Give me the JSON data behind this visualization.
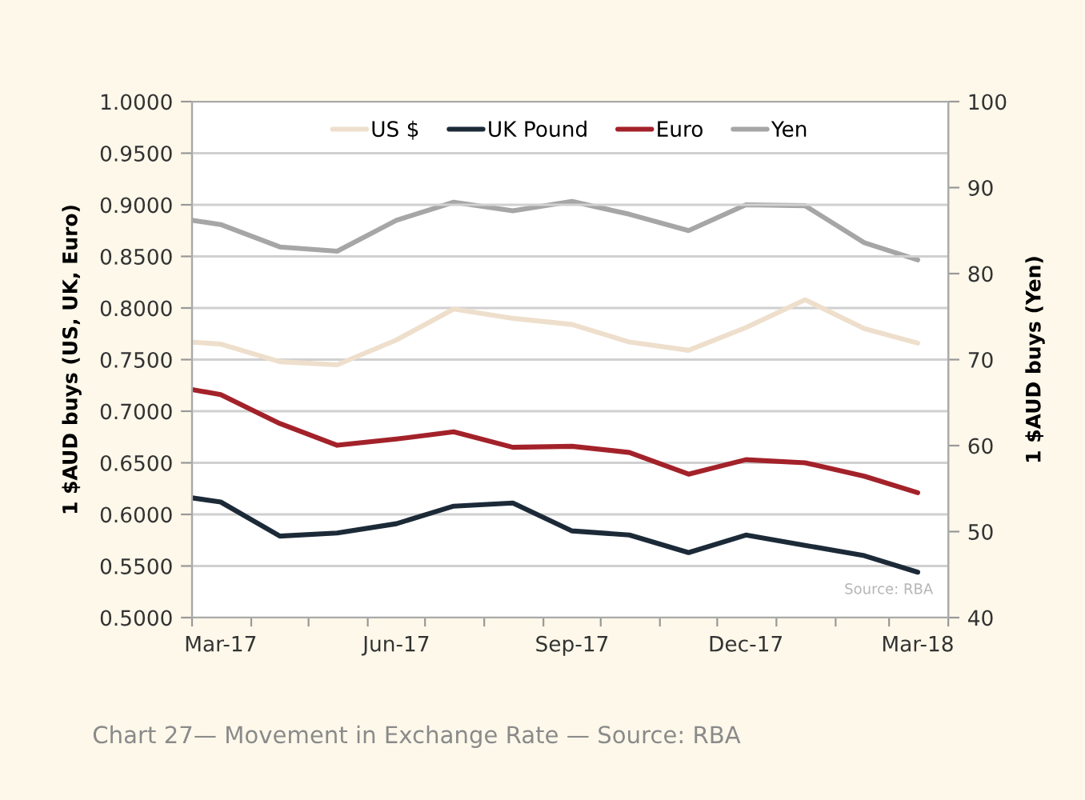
{
  "chart_data": {
    "type": "line",
    "xlabel": null,
    "ylabel": "1 $AUD buys (US, UK, Euro)",
    "y2label": "1 $AUD buys (Yen)",
    "x": [
      "2017-03-01",
      "2017-03-16",
      "2017-04-16",
      "2017-05-16",
      "2017-06-16",
      "2017-07-16",
      "2017-08-16",
      "2017-09-16",
      "2017-10-16",
      "2017-11-16",
      "2017-12-16",
      "2018-01-16",
      "2018-02-16",
      "2018-03-16"
    ],
    "series": [
      {
        "name": "US $",
        "color": "#eedfcc",
        "values": [
          0.767,
          0.765,
          0.748,
          0.745,
          0.769,
          0.799,
          0.79,
          0.784,
          0.767,
          0.759,
          0.781,
          0.808,
          0.78,
          0.766
        ]
      },
      {
        "name": "UK Pound",
        "color": "#1c2a38",
        "values": [
          0.616,
          0.612,
          0.579,
          0.582,
          0.591,
          0.608,
          0.611,
          0.584,
          0.58,
          0.563,
          0.58,
          0.57,
          0.56,
          0.544
        ]
      },
      {
        "name": "Euro",
        "color": "#a3222a",
        "values": [
          0.721,
          0.716,
          0.688,
          0.667,
          0.673,
          0.68,
          0.665,
          0.666,
          0.66,
          0.639,
          0.653,
          0.65,
          0.637,
          0.621
        ]
      },
      {
        "name": "Yen",
        "color": "#a6a6a6",
        "axis": "y2",
        "values": [
          86.2,
          85.7,
          83.1,
          82.6,
          86.2,
          88.3,
          87.3,
          88.4,
          86.9,
          85.0,
          88.0,
          87.9,
          83.6,
          81.6
        ]
      }
    ],
    "xlim": [
      "2017-03-01",
      "2018-04-01"
    ],
    "xticks": [
      {
        "value": "2017-03-01",
        "label": null
      },
      {
        "value": "2017-04-01",
        "label": null
      },
      {
        "value": "2017-05-01",
        "label": null
      },
      {
        "value": "2017-06-01",
        "label": null
      },
      {
        "value": "2017-07-01",
        "label": null
      },
      {
        "value": "2017-08-01",
        "label": null
      },
      {
        "value": "2017-09-01",
        "label": null
      },
      {
        "value": "2017-10-01",
        "label": null
      },
      {
        "value": "2017-11-01",
        "label": null
      },
      {
        "value": "2017-12-01",
        "label": null
      },
      {
        "value": "2018-01-01",
        "label": null
      },
      {
        "value": "2018-02-01",
        "label": null
      },
      {
        "value": "2018-03-01",
        "label": null
      },
      {
        "value": "2018-04-01",
        "label": null
      },
      {
        "value": "2017-03-16",
        "label": "Mar-17"
      },
      {
        "value": "2017-06-16",
        "label": "Jun-17"
      },
      {
        "value": "2017-09-16",
        "label": "Sep-17"
      },
      {
        "value": "2017-12-16",
        "label": "Dec-17"
      },
      {
        "value": "2018-03-16",
        "label": "Mar-18"
      }
    ],
    "ylim": [
      0.5,
      1.0
    ],
    "yticks": [
      {
        "value": 0.5,
        "label": "0.5000"
      },
      {
        "value": 0.55,
        "label": "0.5500"
      },
      {
        "value": 0.6,
        "label": "0.6000"
      },
      {
        "value": 0.65,
        "label": "0.6500"
      },
      {
        "value": 0.7,
        "label": "0.7000"
      },
      {
        "value": 0.75,
        "label": "0.7500"
      },
      {
        "value": 0.8,
        "label": "0.8000"
      },
      {
        "value": 0.85,
        "label": "0.8500"
      },
      {
        "value": 0.9,
        "label": "0.9000"
      },
      {
        "value": 0.95,
        "label": "0.9500"
      },
      {
        "value": 1.0,
        "label": "1.0000"
      }
    ],
    "y2lim": [
      40,
      100
    ],
    "y2ticks": [
      40,
      50,
      60,
      70,
      80,
      90,
      100
    ],
    "grid": "y",
    "legend": "top",
    "line_style": "solid",
    "marker": "none",
    "annotations": [
      "Source: RBA",
      "Chart 27— Movement in Exchange Rate — Source: RBA"
    ]
  }
}
